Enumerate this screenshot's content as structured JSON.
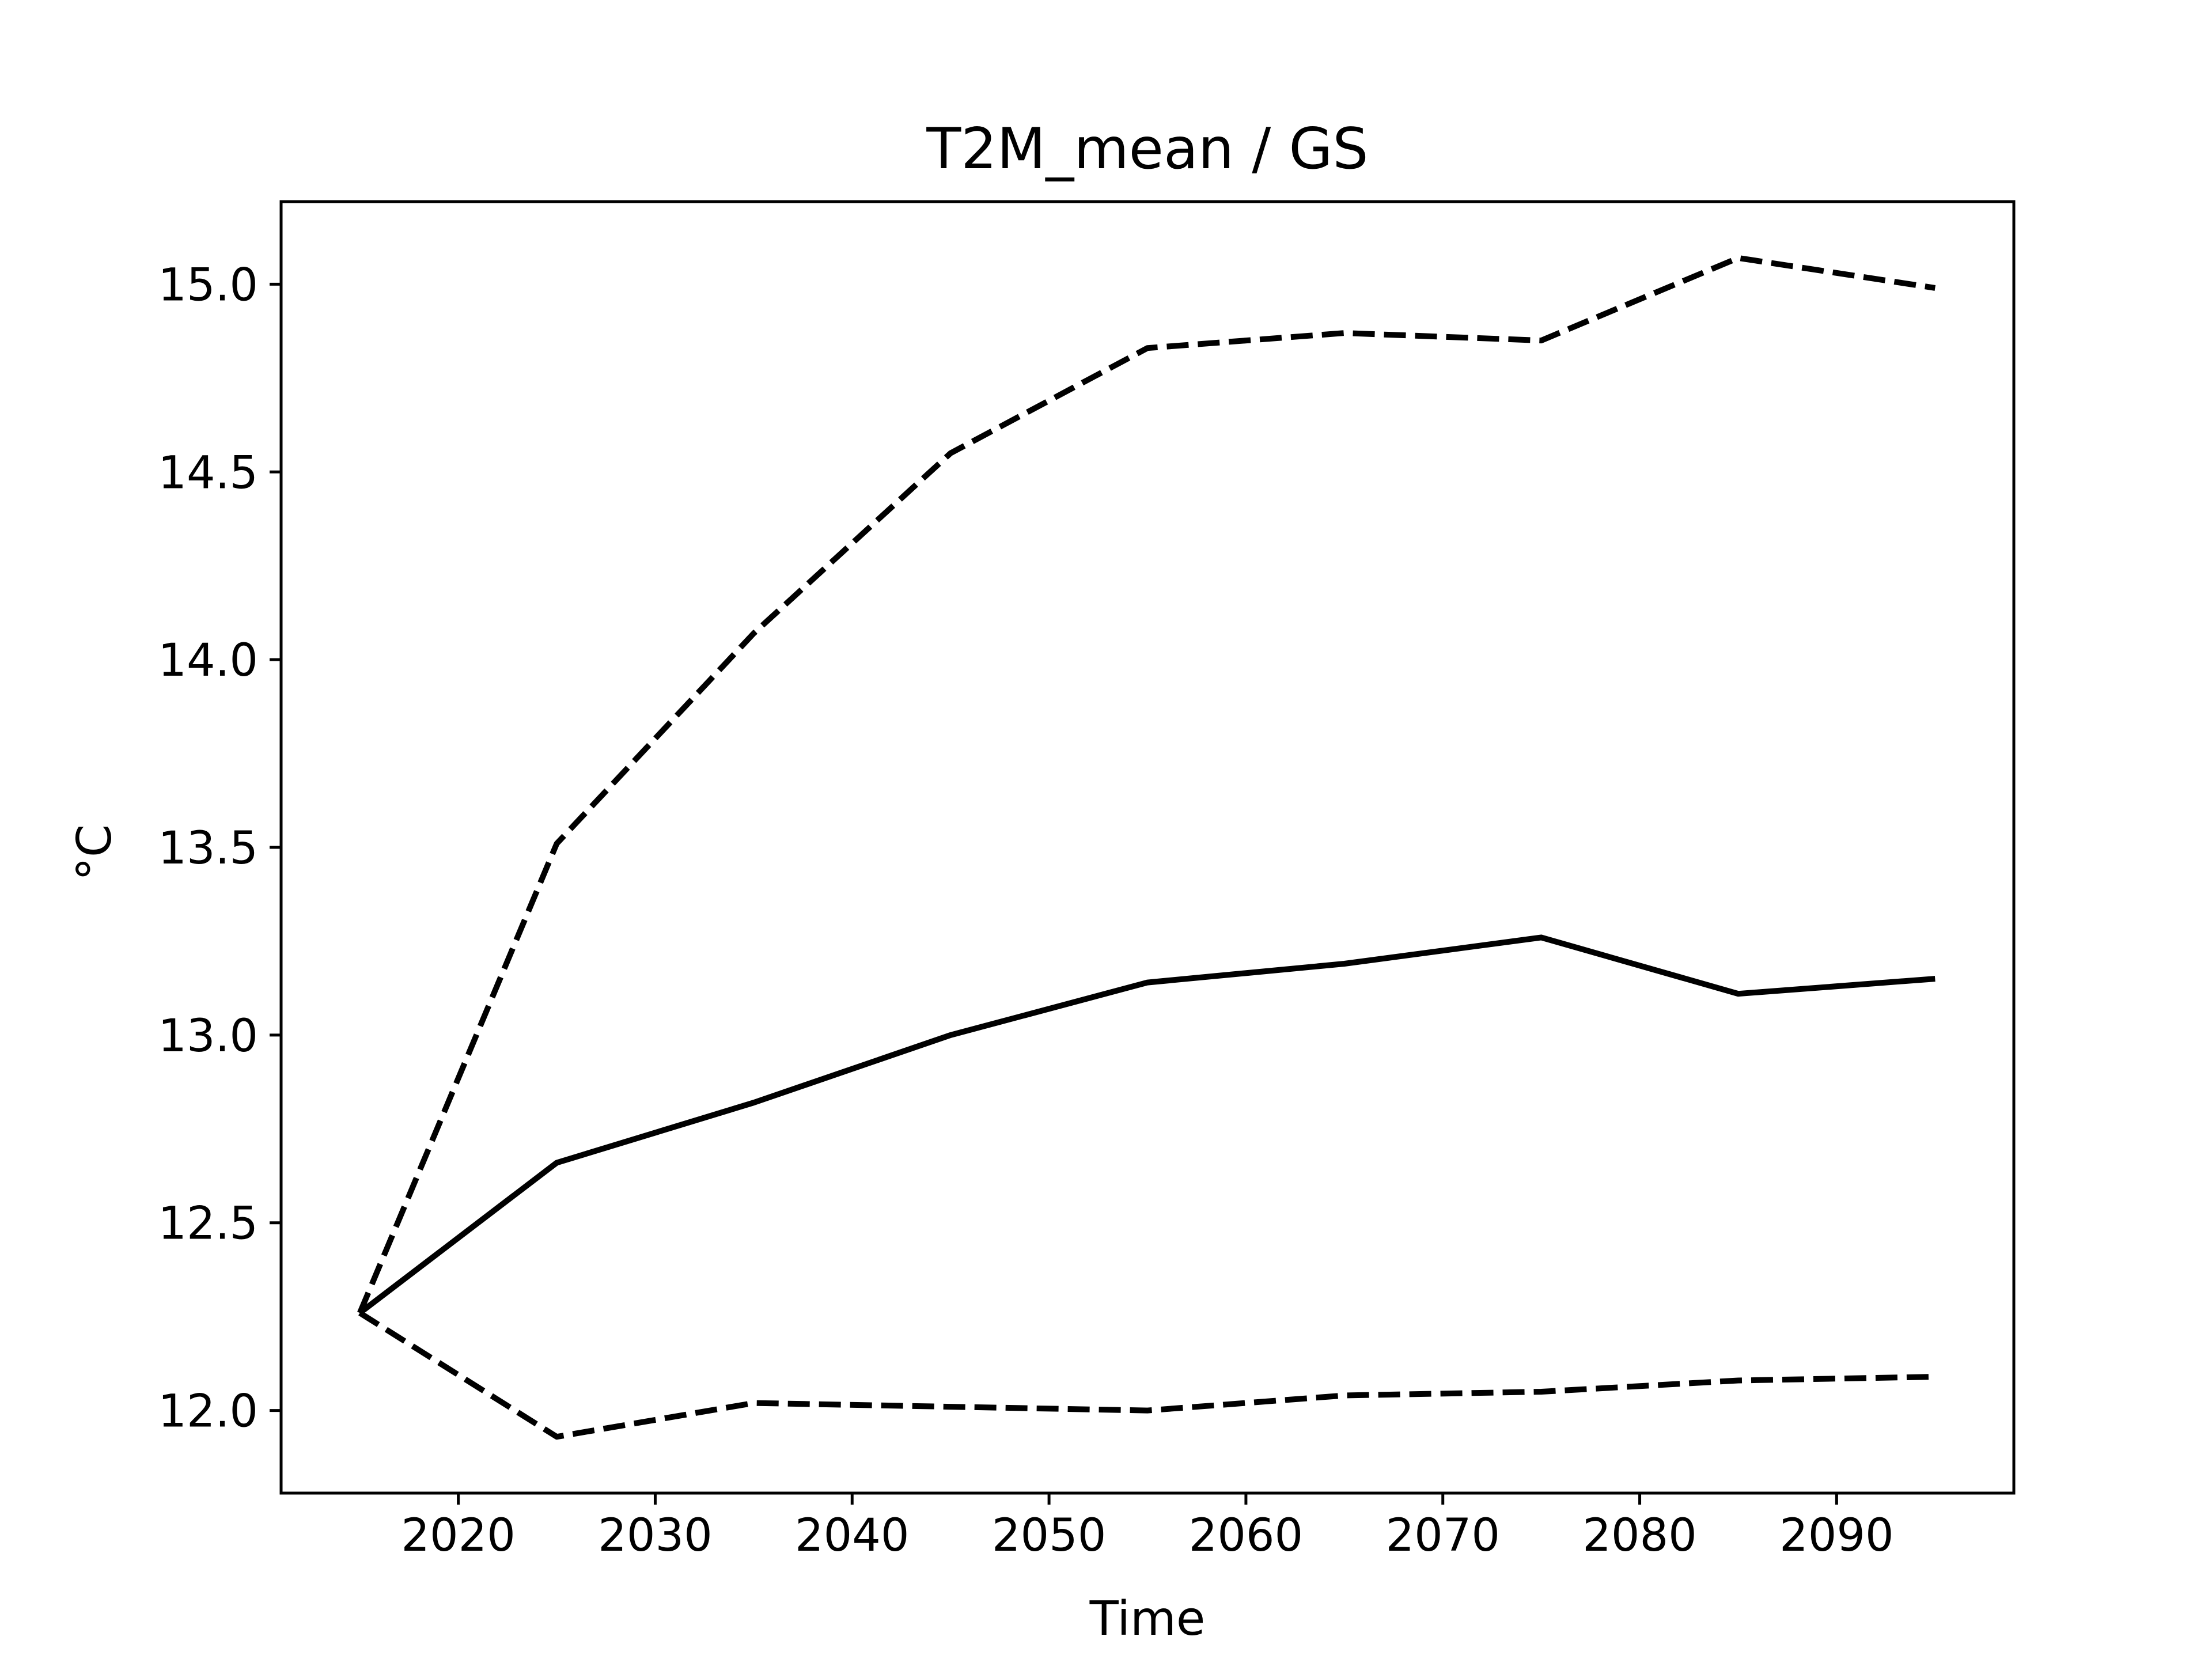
{
  "chart_data": {
    "type": "line",
    "title": "T2M_mean / GS",
    "xlabel": "Time",
    "ylabel": "°C",
    "xlim": [
      2011,
      2099
    ],
    "ylim": [
      11.78,
      15.22
    ],
    "xticks": [
      2020,
      2030,
      2040,
      2050,
      2060,
      2070,
      2080,
      2090
    ],
    "yticks": [
      12.0,
      12.5,
      13.0,
      13.5,
      14.0,
      14.5,
      15.0
    ],
    "grid": false,
    "legend": "none",
    "x": [
      2015,
      2025,
      2035,
      2045,
      2055,
      2065,
      2075,
      2085,
      2095
    ],
    "series": [
      {
        "values": [
          12.26,
          13.51,
          14.07,
          14.55,
          14.83,
          14.87,
          14.85,
          15.07,
          14.99
        ],
        "style": "dashed",
        "color": "#000000"
      },
      {
        "values": [
          12.26,
          12.66,
          12.82,
          13.0,
          13.14,
          13.19,
          13.26,
          13.11,
          13.15
        ],
        "style": "solid",
        "color": "#000000"
      },
      {
        "values": [
          12.26,
          11.93,
          12.02,
          12.01,
          12.0,
          12.04,
          12.05,
          12.08,
          12.09
        ],
        "style": "dashed",
        "color": "#000000"
      }
    ]
  }
}
